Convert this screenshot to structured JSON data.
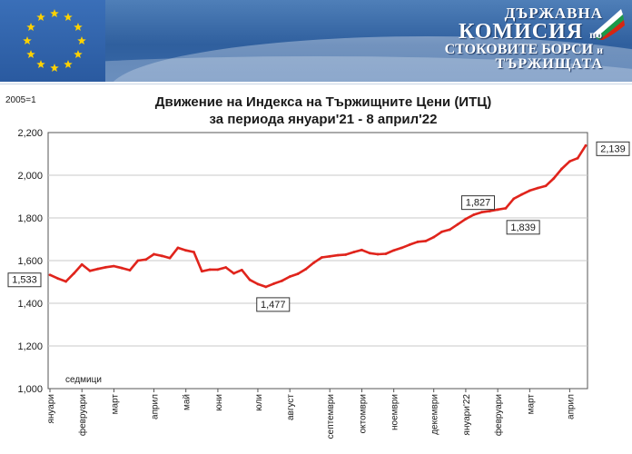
{
  "header": {
    "org_line1": "ДЪРЖАВНА",
    "org_line2": "КОМИСИЯ",
    "org_line2_suffix": "по",
    "org_line3": "СТОКОВИТЕ БОРСИ",
    "org_line3_suffix": "и",
    "org_line4": "ТЪРЖИЩАТА"
  },
  "colors": {
    "line": "#e0241c",
    "grid": "#c8c8c8",
    "banner": "#2f5f9e"
  },
  "chart_data": {
    "type": "line",
    "title": "Движение на Индекса на Тържищните Цени (ИТЦ)",
    "subtitle": "за периода януари'21 - 8 април'22",
    "base_label": "2005=1",
    "ylim": [
      1.0,
      2.2
    ],
    "yticks": [
      "1,000",
      "1,200",
      "1,400",
      "1,600",
      "1,800",
      "2,000",
      "2,200"
    ],
    "xlabel": "седмици",
    "months": [
      "януари",
      "февруари",
      "март",
      "април",
      "май",
      "юни",
      "юли",
      "август",
      "септември",
      "октомври",
      "ноември",
      "декември",
      "януари'22",
      "февруари",
      "март",
      "април"
    ],
    "month_start_week": [
      0,
      4,
      8,
      13,
      17,
      21,
      26,
      30,
      35,
      39,
      43,
      48,
      52,
      56,
      60,
      65
    ],
    "values": [
      1.533,
      1.516,
      1.502,
      1.54,
      1.582,
      1.552,
      1.561,
      1.569,
      1.574,
      1.565,
      1.555,
      1.6,
      1.605,
      1.63,
      1.622,
      1.612,
      1.66,
      1.648,
      1.64,
      1.55,
      1.558,
      1.558,
      1.568,
      1.54,
      1.556,
      1.51,
      1.49,
      1.477,
      1.492,
      1.505,
      1.525,
      1.538,
      1.56,
      1.59,
      1.615,
      1.62,
      1.625,
      1.628,
      1.64,
      1.65,
      1.635,
      1.63,
      1.632,
      1.648,
      1.66,
      1.675,
      1.688,
      1.692,
      1.71,
      1.735,
      1.745,
      1.77,
      1.795,
      1.815,
      1.827,
      1.832,
      1.839,
      1.845,
      1.89,
      1.91,
      1.928,
      1.94,
      1.95,
      1.985,
      2.03,
      2.065,
      2.08,
      2.139
    ],
    "annotations": [
      {
        "label": "1,533",
        "index": 0
      },
      {
        "label": "1,477",
        "index": 27
      },
      {
        "label": "1,827",
        "index": 54
      },
      {
        "label": "1,839",
        "index": 56
      },
      {
        "label": "2,139",
        "index": 67
      }
    ]
  }
}
